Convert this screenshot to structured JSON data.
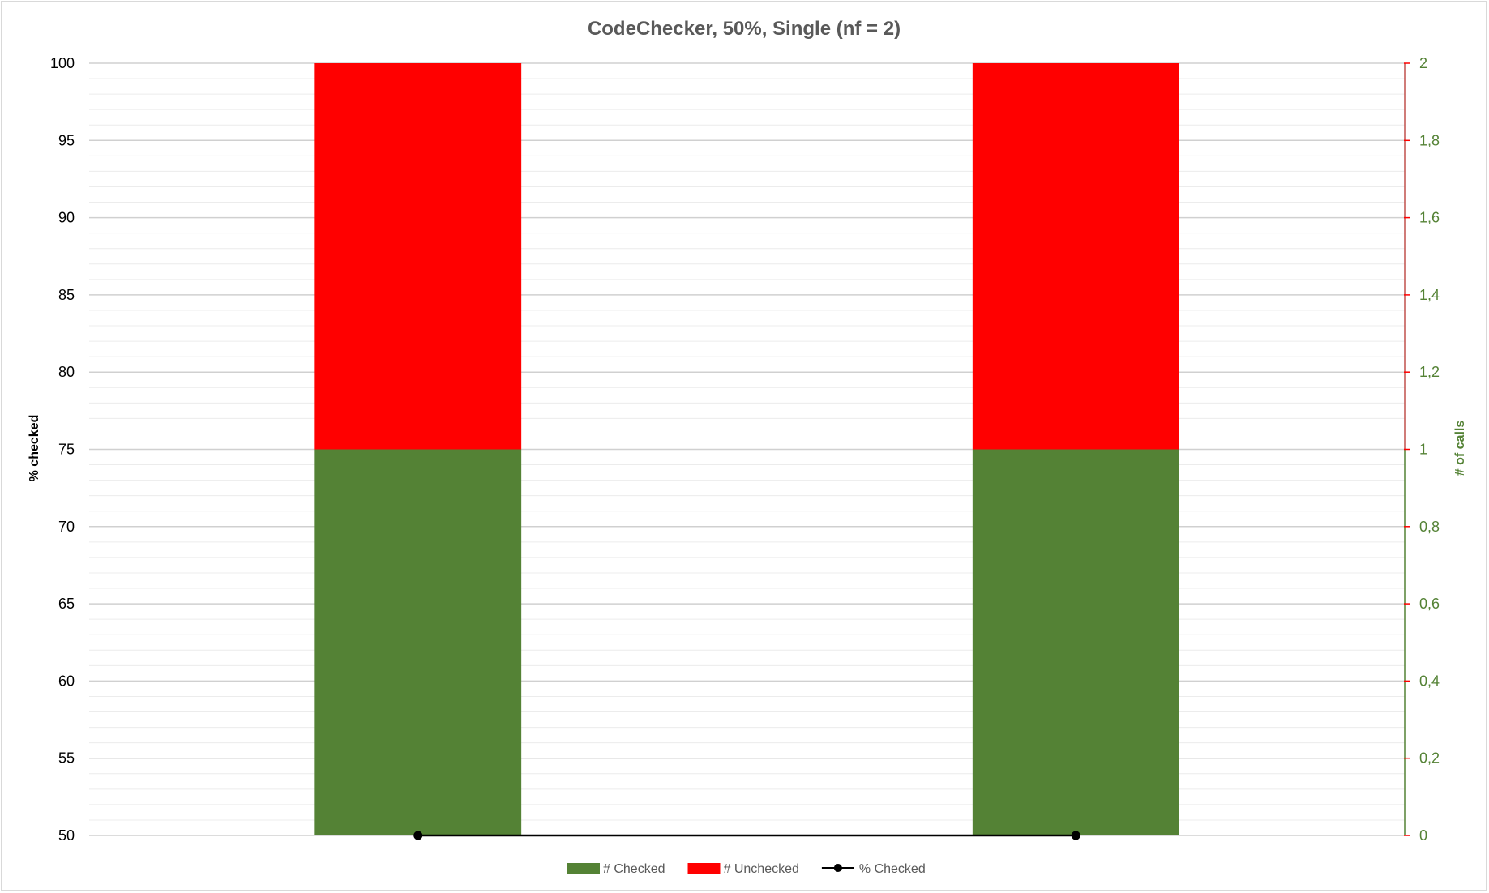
{
  "chart_data": {
    "type": "bar",
    "stacked": true,
    "title": "CodeChecker, 50%, Single (nf = 2)",
    "ylabel": "% checked",
    "y2label": "# of calls",
    "categories": [
      "",
      ""
    ],
    "ylim": [
      50,
      100
    ],
    "yticks": [
      50,
      55,
      60,
      65,
      70,
      75,
      80,
      85,
      90,
      95,
      100
    ],
    "y2lim": [
      0,
      2
    ],
    "y2ticks": [
      "0",
      "0,2",
      "0,4",
      "0,6",
      "0,8",
      "1",
      "1,2",
      "1,4",
      "1,6",
      "1,8",
      "2"
    ],
    "grid": true,
    "legend_position": "bottom",
    "series": [
      {
        "name": "# Checked",
        "kind": "bar",
        "axis": "secondary",
        "color": "#548235",
        "values": [
          1,
          1
        ]
      },
      {
        "name": "# Unchecked",
        "kind": "bar",
        "axis": "secondary",
        "color": "#ff0000",
        "values": [
          1,
          1
        ]
      },
      {
        "name": "% Checked",
        "kind": "line",
        "axis": "primary",
        "color": "#000000",
        "values": [
          50,
          50
        ]
      }
    ],
    "colors": {
      "title": "#595959",
      "y2_axis_text": "#548235",
      "grid": "#d9d9d9"
    }
  }
}
